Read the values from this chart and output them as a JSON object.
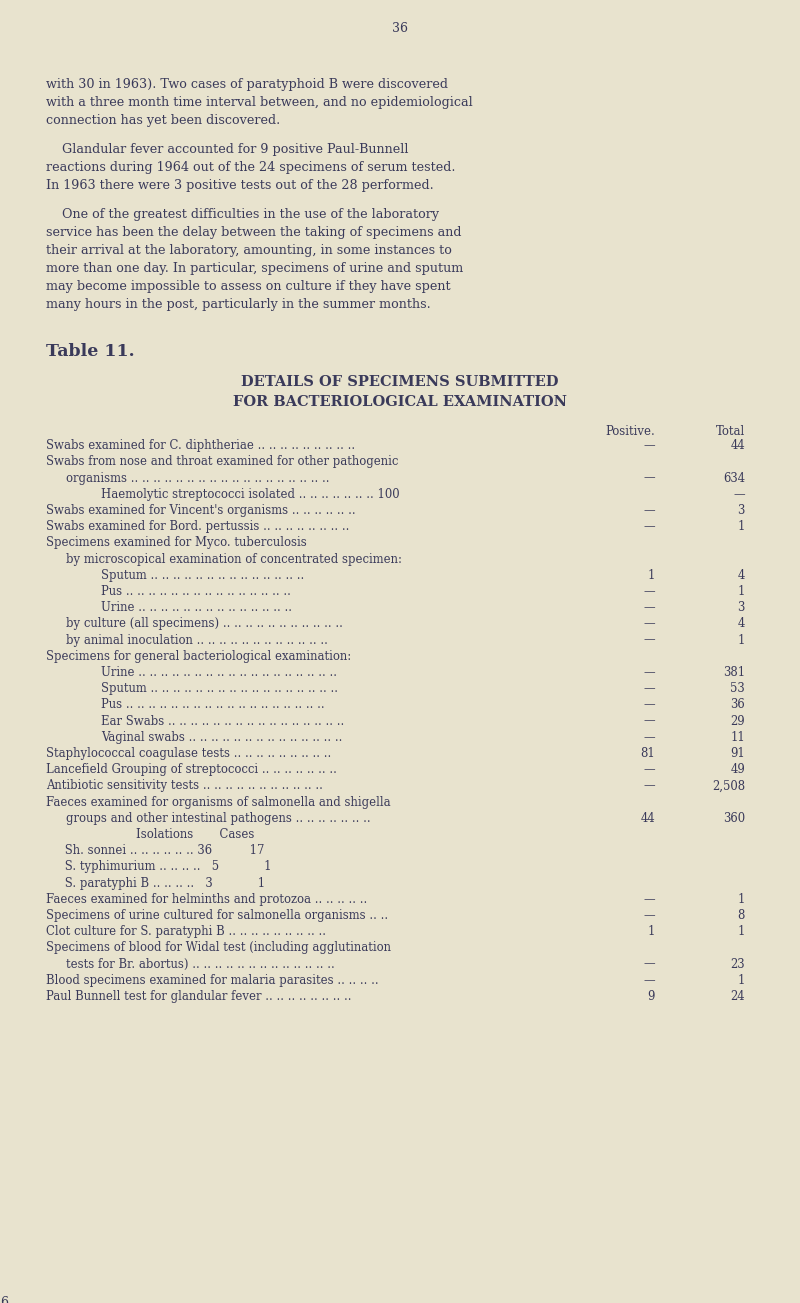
{
  "background_color": "#e8e3ce",
  "text_color": "#3a3a5a",
  "page_number": "36",
  "intro_para1": "with 30 in 1963). Two cases of paratyphoid B were discovered\nwith a three month time interval between, and no epidemiological\nconnection has yet been discovered.",
  "intro_para2": "    Glandular fever accounted for 9 positive Paul-Bunnell\nreactions during 1964 out of the 24 specimens of serum tested.\nIn 1963 there were 3 positive tests out of the 28 performed.",
  "intro_para3": "    One of the greatest difficulties in the use of the laboratory\nservice has been the delay between the taking of specimens and\ntheir arrival at the laboratory, amounting, in some instances to\nmore than one day. In particular, specimens of urine and sputum\nmay become impossible to assess on culture if they have spent\nmany hours in the post, particularly in the summer months.",
  "table_title": "Table 11.",
  "table_heading1": "DETAILS OF SPECIMENS SUBMITTED",
  "table_heading2": "FOR BACTERIOLOGICAL EXAMINATION",
  "col_header_positive": "Positive.",
  "col_header_total": "Total",
  "rows": [
    {
      "text": "Swabs examined for C. diphtheriae .. .. .. .. .. .. .. .. ..",
      "indent": 0,
      "pos": "—",
      "tot": "44"
    },
    {
      "text": "Swabs from nose and throat examined for other pathogenic",
      "indent": 0,
      "pos": "",
      "tot": ""
    },
    {
      "text": "organisms .. .. .. .. .. .. .. .. .. .. .. .. .. .. .. .. .. ..",
      "indent": 1,
      "pos": "—",
      "tot": "634"
    },
    {
      "text": "Haemolytic streptococci isolated .. .. .. .. .. .. .. 100",
      "indent": 2,
      "pos": "",
      "tot": "—"
    },
    {
      "text": "Swabs examined for Vincent's organisms .. .. .. .. .. ..",
      "indent": 0,
      "pos": "—",
      "tot": "3"
    },
    {
      "text": "Swabs examined for Bord. pertussis .. .. .. .. .. .. .. ..",
      "indent": 0,
      "pos": "—",
      "tot": "1"
    },
    {
      "text": "Specimens examined for Myco. tuberculosis",
      "indent": 0,
      "pos": "",
      "tot": ""
    },
    {
      "text": "by microscopical examination of concentrated specimen:",
      "indent": 1,
      "pos": "",
      "tot": ""
    },
    {
      "text": "Sputum .. .. .. .. .. .. .. .. .. .. .. .. .. ..",
      "indent": 2,
      "pos": "1",
      "tot": "4"
    },
    {
      "text": "Pus .. .. .. .. .. .. .. .. .. .. .. .. .. .. ..",
      "indent": 2,
      "pos": "—",
      "tot": "1"
    },
    {
      "text": "Urine .. .. .. .. .. .. .. .. .. .. .. .. .. ..",
      "indent": 2,
      "pos": "—",
      "tot": "3"
    },
    {
      "text": "by culture (all specimens) .. .. .. .. .. .. .. .. .. .. ..",
      "indent": 1,
      "pos": "—",
      "tot": "4"
    },
    {
      "text": "by animal inoculation .. .. .. .. .. .. .. .. .. .. .. ..",
      "indent": 1,
      "pos": "—",
      "tot": "1"
    },
    {
      "text": "Specimens for general bacteriological examination:",
      "indent": 0,
      "pos": "",
      "tot": ""
    },
    {
      "text": "Urine .. .. .. .. .. .. .. .. .. .. .. .. .. .. .. .. .. ..",
      "indent": 2,
      "pos": "—",
      "tot": "381"
    },
    {
      "text": "Sputum .. .. .. .. .. .. .. .. .. .. .. .. .. .. .. .. ..",
      "indent": 2,
      "pos": "—",
      "tot": "53"
    },
    {
      "text": "Pus .. .. .. .. .. .. .. .. .. .. .. .. .. .. .. .. .. ..",
      "indent": 2,
      "pos": "—",
      "tot": "36"
    },
    {
      "text": "Ear Swabs .. .. .. .. .. .. .. .. .. .. .. .. .. .. .. ..",
      "indent": 2,
      "pos": "—",
      "tot": "29"
    },
    {
      "text": "Vaginal swabs .. .. .. .. .. .. .. .. .. .. .. .. .. ..",
      "indent": 2,
      "pos": "—",
      "tot": "11"
    },
    {
      "text": "Staphylococcal coagulase tests .. .. .. .. .. .. .. .. ..",
      "indent": 0,
      "pos": "81",
      "tot": "91"
    },
    {
      "text": "Lancefield Grouping of streptococci .. .. .. .. .. .. ..",
      "indent": 0,
      "pos": "—",
      "tot": "49"
    },
    {
      "text": "Antibiotic sensitivity tests .. .. .. .. .. .. .. .. .. .. ..",
      "indent": 0,
      "pos": "—",
      "tot": "2,508"
    },
    {
      "text": "Faeces examined for organisms of salmonella and shigella",
      "indent": 0,
      "pos": "",
      "tot": ""
    },
    {
      "text": "groups and other intestinal pathogens .. .. .. .. .. .. ..",
      "indent": 1,
      "pos": "44",
      "tot": "360"
    },
    {
      "text": "                        Isolations       Cases",
      "indent": 0,
      "pos": "",
      "tot": ""
    },
    {
      "text": "     Sh. sonnei .. .. .. .. .. .. 36          17",
      "indent": 0,
      "pos": "",
      "tot": ""
    },
    {
      "text": "     S. typhimurium .. .. .. ..   5            1",
      "indent": 0,
      "pos": "",
      "tot": ""
    },
    {
      "text": "     S. paratyphi B .. .. .. ..   3            1",
      "indent": 0,
      "pos": "",
      "tot": ""
    },
    {
      "text": "Faeces examined for helminths and protozoa .. .. .. .. ..",
      "indent": 0,
      "pos": "—",
      "tot": "1"
    },
    {
      "text": "Specimens of urine cultured for salmonella organisms .. ..",
      "indent": 0,
      "pos": "—",
      "tot": "8"
    },
    {
      "text": "Clot culture for S. paratyphi B .. .. .. .. .. .. .. .. ..",
      "indent": 0,
      "pos": "1",
      "tot": "1"
    },
    {
      "text": "Specimens of blood for Widal test (including agglutination",
      "indent": 0,
      "pos": "",
      "tot": ""
    },
    {
      "text": "tests for Br. abortus) .. .. .. .. .. .. .. .. .. .. .. .. ..",
      "indent": 1,
      "pos": "—",
      "tot": "23"
    },
    {
      "text": "Blood specimens examined for malaria parasites .. .. .. ..",
      "indent": 0,
      "pos": "—",
      "tot": "1"
    },
    {
      "text": "Paul Bunnell test for glandular fever .. .. .. .. .. .. .. ..",
      "indent": 0,
      "pos": "9",
      "tot": "24"
    }
  ]
}
